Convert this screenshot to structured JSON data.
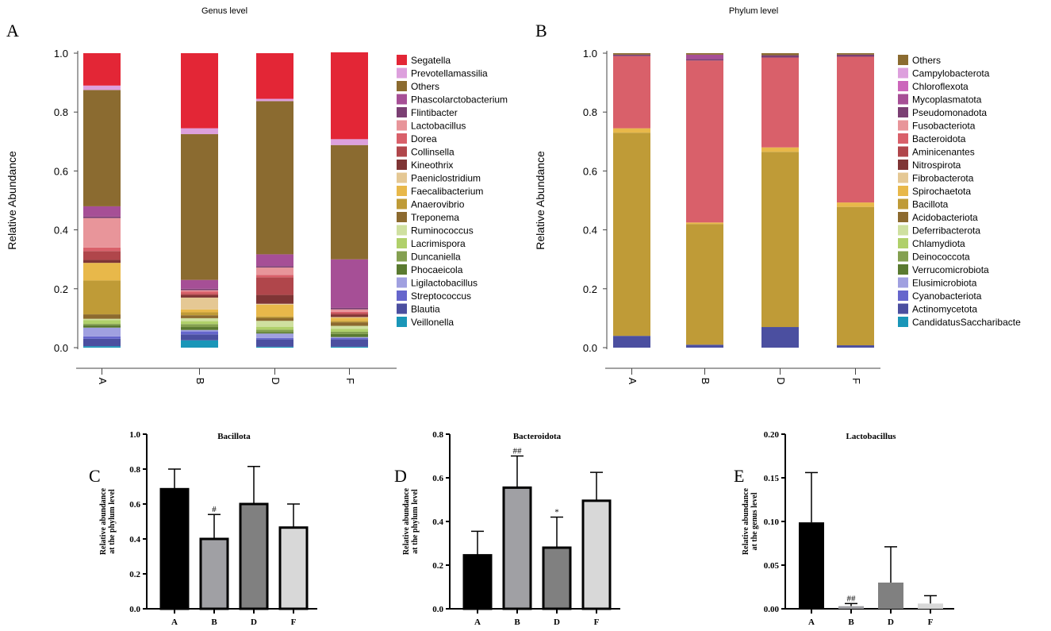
{
  "chart_data": [
    {
      "panel": "A",
      "type": "bar",
      "stacked": true,
      "title": "Genus level",
      "ylabel": "Relative Abundance",
      "ylim": [
        0,
        1.0
      ],
      "yticks": [
        "0.0",
        "0.2",
        "0.4",
        "0.6",
        "0.8",
        "1.0"
      ],
      "categories": [
        "A",
        "B",
        "D",
        "F"
      ],
      "legend_position": "right",
      "series": [
        {
          "name": "Segatella",
          "color": "#e32636",
          "values": [
            0.11,
            0.255,
            0.155,
            0.295
          ]
        },
        {
          "name": "Prevotellamassilia",
          "color": "#dda0dd",
          "values": [
            0.015,
            0.02,
            0.008,
            0.02
          ]
        },
        {
          "name": "Others",
          "color": "#8b6b30",
          "values": [
            0.395,
            0.495,
            0.52,
            0.388
          ]
        },
        {
          "name": "Phascolarctobacterium",
          "color": "#a64f96",
          "values": [
            0.035,
            0.03,
            0.04,
            0.165
          ]
        },
        {
          "name": "Flintibacter",
          "color": "#7b3f73",
          "values": [
            0.005,
            0.005,
            0.005,
            0.005
          ]
        },
        {
          "name": "Lactobacillus",
          "color": "#e8959a",
          "values": [
            0.1,
            0.004,
            0.025,
            0.008
          ]
        },
        {
          "name": "Dorea",
          "color": "#d9606a",
          "values": [
            0.012,
            0.008,
            0.008,
            0.005
          ]
        },
        {
          "name": "Collinsella",
          "color": "#b0464b",
          "values": [
            0.03,
            0.005,
            0.06,
            0.005
          ]
        },
        {
          "name": "Kineothrix",
          "color": "#7f3535",
          "values": [
            0.01,
            0.008,
            0.03,
            0.008
          ]
        },
        {
          "name": "Paeniclostridium",
          "color": "#e5c894",
          "values": [
            0.0,
            0.04,
            0.003,
            0.003
          ]
        },
        {
          "name": "Faecalibacterium",
          "color": "#e8b84a",
          "values": [
            0.06,
            0.01,
            0.04,
            0.01
          ]
        },
        {
          "name": "Anaerovibrio",
          "color": "#bf9b37",
          "values": [
            0.115,
            0.01,
            0.005,
            0.005
          ]
        },
        {
          "name": "Treponema",
          "color": "#8c6a2f",
          "values": [
            0.015,
            0.01,
            0.01,
            0.012
          ]
        },
        {
          "name": "Ruminococcus",
          "color": "#cfe0a0",
          "values": [
            0.005,
            0.01,
            0.02,
            0.01
          ]
        },
        {
          "name": "Lacrimispora",
          "color": "#b0d06a",
          "values": [
            0.012,
            0.01,
            0.01,
            0.01
          ]
        },
        {
          "name": "Duncaniella",
          "color": "#84a050",
          "values": [
            0.005,
            0.01,
            0.008,
            0.008
          ]
        },
        {
          "name": "Phocaeicola",
          "color": "#5a7a30",
          "values": [
            0.008,
            0.01,
            0.005,
            0.01
          ]
        },
        {
          "name": "Ligilactobacillus",
          "color": "#a0a0e0",
          "values": [
            0.03,
            0.005,
            0.015,
            0.003
          ]
        },
        {
          "name": "Streptococcus",
          "color": "#6666cc",
          "values": [
            0.008,
            0.01,
            0.005,
            0.005
          ]
        },
        {
          "name": "Blautia",
          "color": "#4b4fa0",
          "values": [
            0.025,
            0.02,
            0.025,
            0.025
          ]
        },
        {
          "name": "Veillonella",
          "color": "#1a96b8",
          "values": [
            0.005,
            0.025,
            0.003,
            0.003
          ]
        }
      ]
    },
    {
      "panel": "B",
      "type": "bar",
      "stacked": true,
      "title": "Phylum level",
      "ylabel": "Relative Abundance",
      "ylim": [
        0,
        1.0
      ],
      "yticks": [
        "0.0",
        "0.2",
        "0.4",
        "0.6",
        "0.8",
        "1.0"
      ],
      "categories": [
        "A",
        "B",
        "D",
        "F"
      ],
      "legend_position": "right",
      "series": [
        {
          "name": "Others",
          "color": "#8b6b30",
          "values": [
            0.005,
            0.005,
            0.007,
            0.005
          ]
        },
        {
          "name": "Campylobacterota",
          "color": "#dda0dd",
          "values": [
            0,
            0,
            0,
            0
          ]
        },
        {
          "name": "Chloroflexota",
          "color": "#cc66bb",
          "values": [
            0,
            0,
            0,
            0
          ]
        },
        {
          "name": "Mycoplasmatota",
          "color": "#a64f96",
          "values": [
            0,
            0.015,
            0,
            0
          ]
        },
        {
          "name": "Pseudomonadota",
          "color": "#7b3f73",
          "values": [
            0.005,
            0.005,
            0.008,
            0.007
          ]
        },
        {
          "name": "Fusobacteriota",
          "color": "#e8959a",
          "values": [
            0,
            0,
            0,
            0
          ]
        },
        {
          "name": "Bacteroidota",
          "color": "#d9606a",
          "values": [
            0.245,
            0.55,
            0.305,
            0.495
          ]
        },
        {
          "name": "Aminicenantes",
          "color": "#b0464b",
          "values": [
            0,
            0,
            0,
            0
          ]
        },
        {
          "name": "Nitrospirota",
          "color": "#7f3535",
          "values": [
            0,
            0,
            0,
            0
          ]
        },
        {
          "name": "Fibrobacterota",
          "color": "#e5c894",
          "values": [
            0,
            0,
            0,
            0
          ]
        },
        {
          "name": "Spirochaetota",
          "color": "#e8b84a",
          "values": [
            0.015,
            0.005,
            0.015,
            0.015
          ]
        },
        {
          "name": "Bacillota",
          "color": "#bf9b37",
          "values": [
            0.69,
            0.41,
            0.595,
            0.47
          ]
        },
        {
          "name": "Acidobacteriota",
          "color": "#8c6a2f",
          "values": [
            0,
            0,
            0,
            0
          ]
        },
        {
          "name": "Deferribacterota",
          "color": "#cfe0a0",
          "values": [
            0,
            0,
            0,
            0
          ]
        },
        {
          "name": "Chlamydiota",
          "color": "#b0d06a",
          "values": [
            0,
            0,
            0,
            0
          ]
        },
        {
          "name": "Deinococcota",
          "color": "#84a050",
          "values": [
            0,
            0,
            0,
            0
          ]
        },
        {
          "name": "Verrucomicrobiota",
          "color": "#5a7a30",
          "values": [
            0,
            0,
            0,
            0
          ]
        },
        {
          "name": "Elusimicrobiota",
          "color": "#a0a0e0",
          "values": [
            0,
            0,
            0,
            0
          ]
        },
        {
          "name": "Cyanobacteriota",
          "color": "#6666cc",
          "values": [
            0,
            0,
            0,
            0
          ]
        },
        {
          "name": "Actinomycetota",
          "color": "#4b4fa0",
          "values": [
            0.04,
            0.01,
            0.07,
            0.008
          ]
        },
        {
          "name": "CandidatusSaccharibacte",
          "color": "#1a96b8",
          "values": [
            0,
            0,
            0,
            0
          ]
        }
      ]
    },
    {
      "panel": "C",
      "type": "bar",
      "title": "Bacillota",
      "ylabel": [
        "Relative abundance",
        "at the phylum level"
      ],
      "ylim": [
        0,
        1.0
      ],
      "yticks": [
        "0.0",
        "0.2",
        "0.4",
        "0.6",
        "0.8",
        "1.0"
      ],
      "categories": [
        "A",
        "B",
        "D",
        "F"
      ],
      "values": [
        0.685,
        0.4,
        0.6,
        0.465
      ],
      "errors": [
        0.115,
        0.14,
        0.215,
        0.135
      ],
      "annotations": [
        "",
        "#",
        "",
        ""
      ],
      "colors": [
        "#000000",
        "#a0a0a4",
        "#808080",
        "#d8d8d8"
      ]
    },
    {
      "panel": "D",
      "type": "bar",
      "title": "Bacteroidota",
      "ylabel": [
        "Relative abundance",
        "at the phylum level"
      ],
      "ylim": [
        0,
        0.8
      ],
      "yticks": [
        "0.0",
        "0.2",
        "0.4",
        "0.6",
        "0.8"
      ],
      "categories": [
        "A",
        "B",
        "D",
        "F"
      ],
      "values": [
        0.245,
        0.555,
        0.28,
        0.495
      ],
      "errors": [
        0.11,
        0.145,
        0.14,
        0.13
      ],
      "annotations": [
        "",
        "##",
        "*",
        ""
      ],
      "colors": [
        "#000000",
        "#a0a0a4",
        "#808080",
        "#d8d8d8"
      ]
    },
    {
      "panel": "E",
      "type": "bar",
      "title": "Lactobacillus",
      "ylabel": [
        "Relative abundance",
        "at the genus level"
      ],
      "ylim": [
        0,
        0.2
      ],
      "yticks": [
        "0.00",
        "0.05",
        "0.10",
        "0.15",
        "0.20"
      ],
      "categories": [
        "A",
        "B",
        "D",
        "F"
      ],
      "values": [
        0.099,
        0.003,
        0.03,
        0.006
      ],
      "errors": [
        0.057,
        0.003,
        0.041,
        0.009
      ],
      "annotations": [
        "",
        "##",
        "",
        ""
      ],
      "colors": [
        "#000000",
        "#a0a0a4",
        "#808080",
        "#d8d8d8"
      ]
    }
  ]
}
